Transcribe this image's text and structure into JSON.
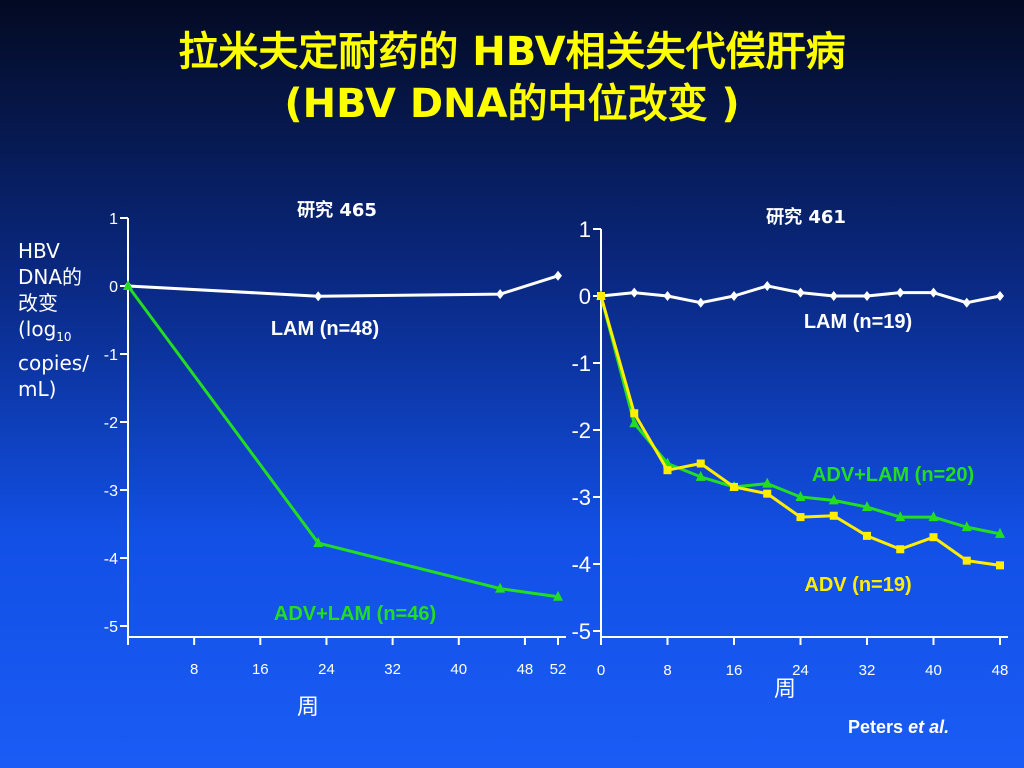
{
  "title": {
    "line1": "拉米夫定耐药的 HBV相关失代偿肝病",
    "line2": "(HBV DNA的中位改变 )"
  },
  "y_axis_label": {
    "line1": "HBV",
    "line2": "DNA的",
    "line3": "改变",
    "line4_main": "(log",
    "line4_sub": "10",
    "line5": "copies/",
    "line6": "mL)"
  },
  "credit": {
    "name": "Peters",
    "etal": "et al."
  },
  "colors": {
    "lam": "#ffffff",
    "adv_lam": "#22dd22",
    "adv": "#ffee00",
    "axis": "#ffffff",
    "title": "#ffff00"
  },
  "chart_data": [
    {
      "type": "line",
      "title": "研究 465",
      "xlabel": "周",
      "ylabel": "",
      "xlim": [
        0,
        52
      ],
      "ylim": [
        -5,
        1
      ],
      "x_ticks": [
        8,
        16,
        24,
        32,
        40,
        48,
        52
      ],
      "y_ticks": [
        1,
        0,
        -1,
        -2,
        -3,
        -4,
        -5
      ],
      "grid": false,
      "series": [
        {
          "name": "LAM (n=48)",
          "marker": "diamond",
          "x": [
            0,
            23,
            45,
            52
          ],
          "y": [
            0,
            -0.15,
            -0.12,
            0.15
          ]
        },
        {
          "name": "ADV+LAM (n=46)",
          "marker": "triangle",
          "x": [
            0,
            23,
            45,
            52
          ],
          "y": [
            0,
            -3.78,
            -4.45,
            -4.57
          ]
        }
      ]
    },
    {
      "type": "line",
      "title": "研究 461",
      "xlabel": "周",
      "ylabel": "",
      "xlim": [
        0,
        48
      ],
      "ylim": [
        -5,
        1
      ],
      "x_ticks": [
        0,
        8,
        16,
        24,
        32,
        40,
        48
      ],
      "y_ticks": [
        1,
        0,
        -1,
        -2,
        -3,
        -4,
        -5
      ],
      "grid": false,
      "series": [
        {
          "name": "LAM (n=19)",
          "marker": "diamond",
          "x": [
            0,
            4,
            8,
            12,
            16,
            20,
            24,
            28,
            32,
            36,
            40,
            44,
            48
          ],
          "y": [
            0,
            0.05,
            0,
            -0.1,
            0,
            0.15,
            0.05,
            0,
            0,
            0.05,
            0.05,
            -0.1,
            0
          ]
        },
        {
          "name": "ADV+LAM (n=20)",
          "marker": "triangle",
          "x": [
            0,
            4,
            8,
            12,
            16,
            20,
            24,
            28,
            32,
            36,
            40,
            44,
            48
          ],
          "y": [
            0,
            -1.9,
            -2.5,
            -2.7,
            -2.85,
            -2.8,
            -3.0,
            -3.05,
            -3.15,
            -3.3,
            -3.3,
            -3.45,
            -3.55
          ]
        },
        {
          "name": "ADV (n=19)",
          "marker": "square",
          "x": [
            0,
            4,
            8,
            12,
            16,
            20,
            24,
            28,
            32,
            36,
            40,
            44,
            48
          ],
          "y": [
            0,
            -1.75,
            -2.6,
            -2.5,
            -2.85,
            -2.95,
            -3.3,
            -3.28,
            -3.58,
            -3.78,
            -3.6,
            -3.95,
            -4.02
          ]
        }
      ]
    }
  ]
}
